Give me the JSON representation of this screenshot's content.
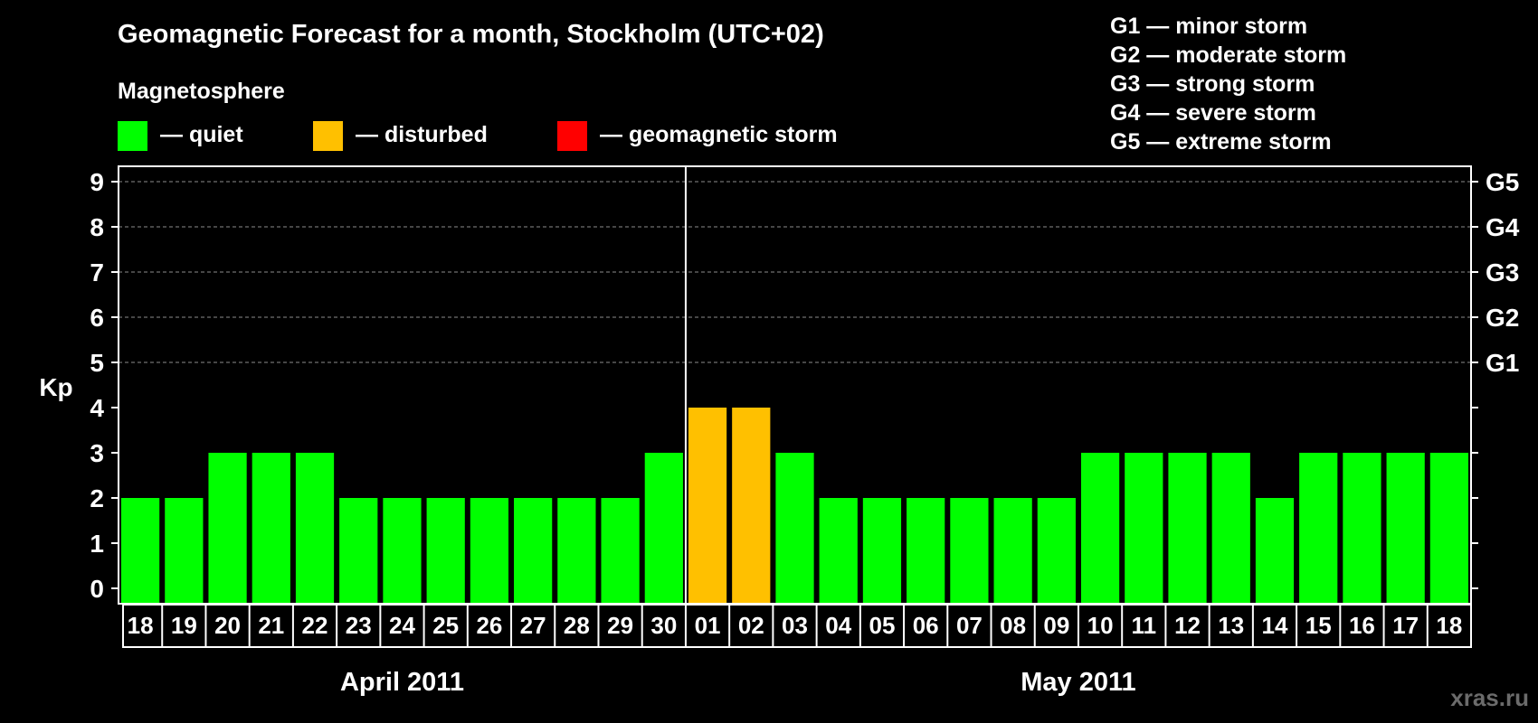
{
  "chart_data": {
    "type": "bar",
    "title": "Geomagnetic Forecast for a month, Stockholm (UTC+02)",
    "legend_heading": "Magnetosphere",
    "legend": [
      {
        "label": "— quiet",
        "color": "#00ff00"
      },
      {
        "label": "— disturbed",
        "color": "#ffc000"
      },
      {
        "label": "— geomagnetic storm",
        "color": "#ff0000"
      }
    ],
    "storm_scale": [
      "G1 — minor storm",
      "G2 — moderate storm",
      "G3 — strong storm",
      "G4 — severe storm",
      "G5 — extreme storm"
    ],
    "ylabel": "Kp",
    "ylim": [
      0,
      9
    ],
    "yticks": [
      "0",
      "1",
      "2",
      "3",
      "4",
      "5",
      "6",
      "7",
      "8",
      "9"
    ],
    "right_axis": [
      {
        "label": "G1",
        "kp": 5
      },
      {
        "label": "G2",
        "kp": 6
      },
      {
        "label": "G3",
        "kp": 7
      },
      {
        "label": "G4",
        "kp": 8
      },
      {
        "label": "G5",
        "kp": 9
      }
    ],
    "grid": "dashed horizontal lines at Kp 5-9",
    "categories": [
      "18",
      "19",
      "20",
      "21",
      "22",
      "23",
      "24",
      "25",
      "26",
      "27",
      "28",
      "29",
      "30",
      "01",
      "02",
      "03",
      "04",
      "05",
      "06",
      "07",
      "08",
      "09",
      "10",
      "11",
      "12",
      "13",
      "14",
      "15",
      "16",
      "17",
      "18"
    ],
    "values": [
      2,
      2,
      3,
      3,
      3,
      2,
      2,
      2,
      2,
      2,
      2,
      2,
      3,
      4,
      4,
      3,
      2,
      2,
      2,
      2,
      2,
      2,
      3,
      3,
      3,
      3,
      2,
      3,
      3,
      3,
      3
    ],
    "months": [
      {
        "label": "April 2011",
        "days": 13
      },
      {
        "label": "May 2011",
        "days": 18
      }
    ],
    "colors": {
      "quiet": "#00ff00",
      "disturbed": "#ffc000",
      "storm": "#ff0000",
      "background": "#000000",
      "axis": "#ffffff",
      "grid": "#8c8c8c"
    },
    "watermark": "xras.ru"
  }
}
